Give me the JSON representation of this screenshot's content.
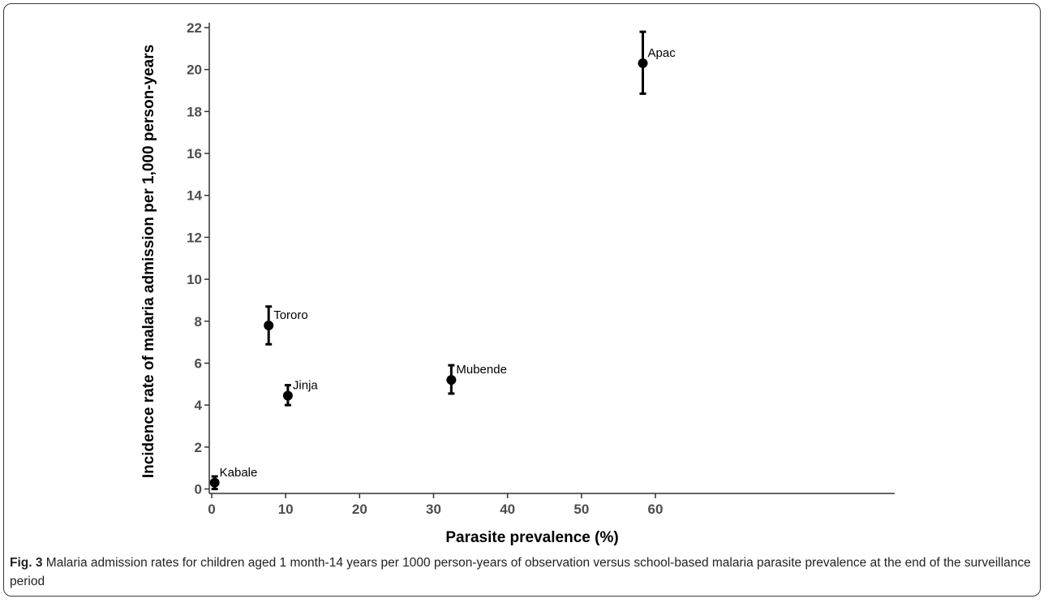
{
  "chart_data": {
    "type": "scatter",
    "xlabel": "Parasite prevalence (%)",
    "ylabel": "Incidence rate of malaria admission per 1,000 person-years",
    "xlim": [
      0,
      62
    ],
    "ylim": [
      0,
      22
    ],
    "x_ticks": [
      0,
      10,
      20,
      30,
      40,
      50,
      60
    ],
    "y_ticks": [
      0,
      2,
      4,
      6,
      8,
      10,
      12,
      14,
      16,
      18,
      20,
      22
    ],
    "grid": false,
    "points": [
      {
        "label": "Kabale",
        "x": 0.4,
        "y": 0.3,
        "lower": 0.0,
        "upper": 0.6
      },
      {
        "label": "Tororo",
        "x": 7.7,
        "y": 7.8,
        "lower": 6.9,
        "upper": 8.7
      },
      {
        "label": "Jinja",
        "x": 10.3,
        "y": 4.45,
        "lower": 4.0,
        "upper": 4.95
      },
      {
        "label": "Mubende",
        "x": 32.4,
        "y": 5.2,
        "lower": 4.55,
        "upper": 5.9
      },
      {
        "label": "Apac",
        "x": 58.3,
        "y": 20.3,
        "lower": 18.85,
        "upper": 21.8
      }
    ]
  },
  "caption": {
    "fig_label": "Fig. 3",
    "text": "Malaria admission rates for children aged 1 month-14 years per 1000 person-years of observation versus school-based malaria parasite prevalence at the end of the surveillance period"
  }
}
